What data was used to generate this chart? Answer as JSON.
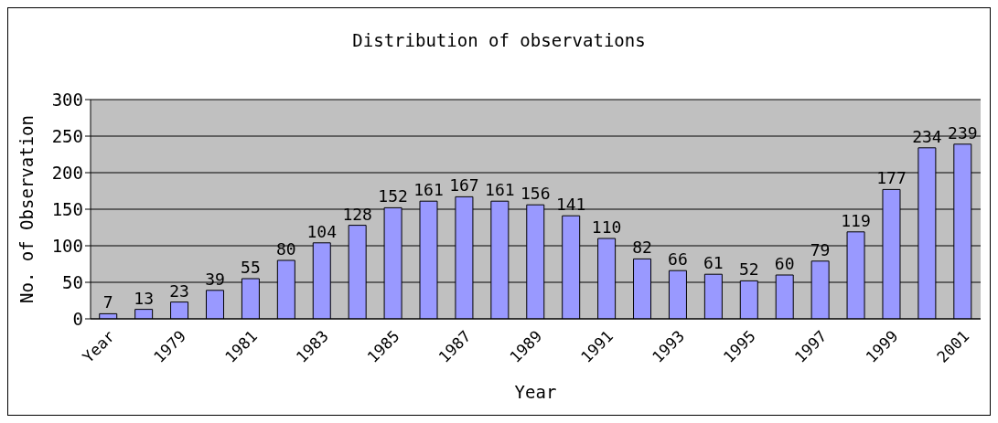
{
  "chart_data": {
    "type": "bar",
    "title": "Distribution of observations",
    "xlabel": "Year",
    "ylabel": "No. of Observation",
    "categories": [
      "Year",
      null,
      "1979",
      null,
      "1981",
      null,
      "1983",
      null,
      "1985",
      null,
      "1987",
      null,
      "1989",
      null,
      "1991",
      null,
      "1993",
      null,
      "1995",
      null,
      "1997",
      null,
      "1999",
      null,
      "2001"
    ],
    "values": [
      7,
      13,
      23,
      39,
      55,
      80,
      104,
      128,
      152,
      161,
      167,
      161,
      156,
      141,
      110,
      82,
      66,
      61,
      52,
      60,
      79,
      119,
      177,
      234,
      239
    ],
    "color": "#9999ff",
    "ylim": [
      0,
      300
    ],
    "yticks": [
      0,
      50,
      100,
      150,
      200,
      250,
      300
    ],
    "grid": "y",
    "data_labels": true
  }
}
